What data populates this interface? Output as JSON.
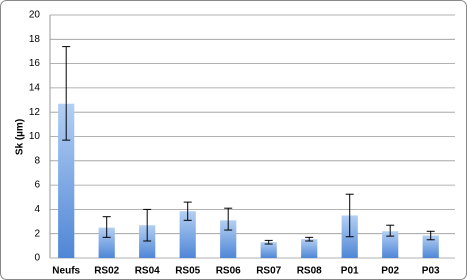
{
  "chart_data": {
    "type": "bar",
    "y_label": "Sk (µm)",
    "categories": [
      "Neufs",
      "RS02",
      "RS04",
      "RS05",
      "RS06",
      "RS07",
      "RS08",
      "P01",
      "P02",
      "P03"
    ],
    "values": [
      12.7,
      2.5,
      2.7,
      3.85,
      3.1,
      1.3,
      1.55,
      3.5,
      2.2,
      1.85
    ],
    "errors_plus": [
      4.7,
      0.9,
      1.3,
      0.75,
      1.0,
      0.15,
      0.15,
      1.75,
      0.5,
      0.35
    ],
    "errors_minus": [
      3.0,
      0.8,
      1.3,
      0.75,
      0.8,
      0.15,
      0.15,
      1.75,
      0.4,
      0.35
    ],
    "color": "#4f86d6",
    "ylim": [
      0,
      20
    ],
    "yticks": [
      0,
      2,
      4,
      6,
      8,
      10,
      12,
      14,
      16,
      18,
      20
    ],
    "grid": true
  }
}
